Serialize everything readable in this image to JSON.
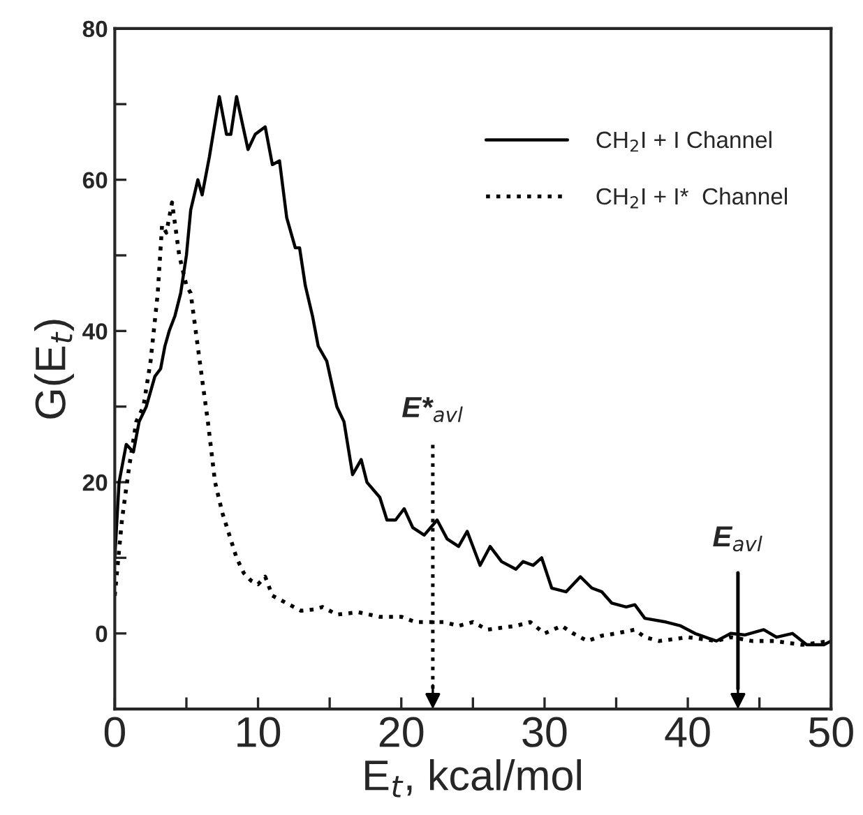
{
  "chart_data": {
    "type": "line",
    "xlabel": "E$_{t}$, kcal/mol",
    "ylabel": "G(E$_{t}$)",
    "xlim": [
      0,
      50
    ],
    "ylim": [
      -10,
      80
    ],
    "xticks": [
      0,
      {
        "value": 5,
        "label": null
      },
      10,
      {
        "value": 15,
        "label": null
      },
      20,
      {
        "value": 25,
        "label": null
      },
      30,
      {
        "value": 35,
        "label": null
      },
      40,
      {
        "value": 45,
        "label": null
      },
      50
    ],
    "yticks": [
      0,
      {
        "value": 10,
        "label": null
      },
      20,
      {
        "value": 30,
        "label": null
      },
      40,
      {
        "value": 50,
        "label": null
      },
      60,
      {
        "value": 70,
        "label": null
      },
      80
    ],
    "grid": false,
    "legend": "top right",
    "series": [
      {
        "name": "CH$_{2}$I + I Channel",
        "color": "#000000",
        "line_style": "solid",
        "x": [
          0,
          0.3,
          0.8,
          1.3,
          1.7,
          2.2,
          2.8,
          3.2,
          3.5,
          3.8,
          4.2,
          4.6,
          5,
          5.3,
          5.8,
          6.1,
          6.6,
          7.3,
          7.8,
          8.1,
          8.5,
          9.3,
          9.8,
          10.5,
          11,
          11.5,
          12,
          12.6,
          12.9,
          13.3,
          13.8,
          14.2,
          14.8,
          15.5,
          16,
          16.6,
          17.2,
          17.6,
          18.5,
          19,
          19.6,
          20.2,
          20.8,
          21.6,
          22.5,
          23.2,
          24,
          24.6,
          25.5,
          26.2,
          27,
          28,
          28.5,
          29.2,
          29.8,
          30.5,
          31.5,
          32.5,
          33.3,
          34,
          34.7,
          35.7,
          36.3,
          37,
          38.5,
          39.5,
          40.5,
          42,
          43,
          44,
          45.3,
          46.2,
          47.3,
          48.3,
          49.5,
          50
        ],
        "values": [
          10,
          20,
          25,
          24,
          28,
          30,
          34,
          35,
          38,
          40,
          42,
          45,
          50,
          56,
          60,
          58,
          63,
          71,
          66,
          66,
          71,
          64,
          66,
          67,
          62,
          62.5,
          55,
          51,
          51,
          46,
          42,
          38,
          36,
          30,
          28,
          21,
          23,
          20,
          18,
          15,
          15,
          16.5,
          14,
          13,
          15,
          12.5,
          11.5,
          13.5,
          9,
          11.5,
          9.5,
          8.5,
          9.5,
          9,
          10,
          6,
          5.5,
          7.5,
          6,
          5.5,
          4,
          3.5,
          3.8,
          2,
          1.5,
          1,
          0,
          -1,
          0,
          -0.2,
          0.5,
          -0.5,
          0,
          -1.5,
          -1.5,
          -1
        ]
      },
      {
        "name": "CH$_{2}$I + I*  Channel",
        "color": "#000000",
        "line_style": "dotted",
        "x": [
          0,
          0.5,
          1,
          1.5,
          2,
          2.5,
          3,
          3.3,
          3.6,
          4,
          4.5,
          5,
          5.3,
          6,
          6.5,
          7,
          7.5,
          8,
          8.5,
          9,
          9.5,
          10,
          10.5,
          11,
          12,
          13,
          14,
          14.5,
          15.5,
          17,
          18.5,
          20,
          21,
          23,
          24,
          25,
          26,
          28,
          29,
          30,
          31.2,
          32,
          33,
          34,
          35,
          36.3,
          37,
          38,
          40,
          42,
          43,
          44.5,
          46,
          48,
          50
        ],
        "values": [
          5,
          15,
          22,
          28,
          30,
          36,
          45,
          54,
          53,
          57,
          50,
          46,
          45,
          35,
          28,
          20,
          16,
          13,
          10,
          8,
          7,
          6.5,
          7.5,
          5,
          4,
          3,
          3.2,
          3.5,
          2.5,
          2.8,
          2.2,
          2.2,
          1.5,
          1.5,
          1,
          1.5,
          0.5,
          1,
          1.5,
          0,
          1,
          0,
          -1,
          -0.3,
          0,
          0.5,
          -0.5,
          -1,
          -0.5,
          -1,
          -0.5,
          -1,
          -1,
          -1.5,
          -1
        ]
      }
    ],
    "ref_lines": [
      {
        "axis": "x",
        "value": 22.2,
        "label": "E*$_{avl}$",
        "line_style": "dotted",
        "color": "#000000"
      },
      {
        "axis": "x",
        "value": 43.5,
        "label": "E$_{avl}$",
        "line_style": "solid",
        "color": "#000000"
      }
    ]
  }
}
